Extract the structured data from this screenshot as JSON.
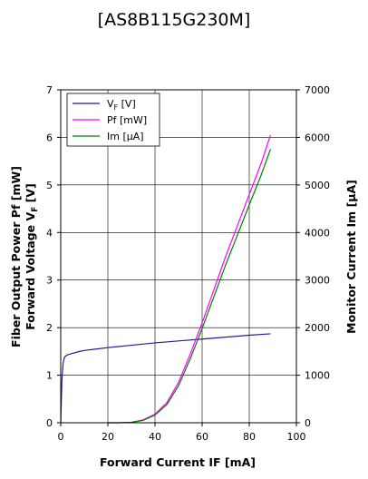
{
  "chart_data": {
    "type": "line",
    "title": "[AS8B115G230M]",
    "xlabel": "Forward Current IF [mA]",
    "ylabel_left_line1": "Fiber Output Power Pf [mW]",
    "ylabel_left_line2_main": "Forward Voltage V",
    "ylabel_left_line2_sub": "F",
    "ylabel_left_line2_unit": " [V]",
    "ylabel_right": "Monitor Current Im [µA]",
    "xlim": [
      0,
      100
    ],
    "ylim_left": [
      0,
      7
    ],
    "ylim_right": [
      0,
      7000
    ],
    "x_ticks": [
      "0",
      "20",
      "40",
      "60",
      "80",
      "100"
    ],
    "y_left_ticks": [
      "0",
      "1",
      "2",
      "3",
      "4",
      "5",
      "6",
      "7"
    ],
    "y_right_ticks": [
      "0",
      "1000",
      "2000",
      "3000",
      "4000",
      "5000",
      "6000",
      "7000"
    ],
    "grid": true,
    "legend_position": "top-left",
    "series": [
      {
        "name": "VF [V]",
        "legend_main": "V",
        "legend_sub": "F",
        "legend_unit": " [V]",
        "axis": "left",
        "color": "#1f1f8f",
        "x": [
          0,
          0.5,
          1,
          1.5,
          2,
          3,
          5,
          8,
          10,
          15,
          20,
          30,
          40,
          50,
          60,
          70,
          80,
          89
        ],
        "y": [
          0,
          0.9,
          1.25,
          1.36,
          1.4,
          1.43,
          1.46,
          1.5,
          1.52,
          1.55,
          1.58,
          1.63,
          1.68,
          1.72,
          1.76,
          1.8,
          1.84,
          1.87
        ]
      },
      {
        "name": "Pf [mW]",
        "legend_main": "Pf",
        "legend_sub": "",
        "legend_unit": " [mW]",
        "axis": "left",
        "color": "#ff00ff",
        "x": [
          20,
          25,
          30,
          35,
          40,
          45,
          50,
          55,
          60,
          65,
          70,
          75,
          80,
          85,
          89
        ],
        "y": [
          0,
          0,
          0.01,
          0.06,
          0.18,
          0.42,
          0.85,
          1.45,
          2.1,
          2.8,
          3.5,
          4.15,
          4.8,
          5.45,
          6.05
        ]
      },
      {
        "name": "Im [µA]",
        "legend_main": "Im [",
        "legend_sub": "",
        "legend_unit": "µA]",
        "axis": "right",
        "color": "#008000",
        "x": [
          20,
          25,
          30,
          35,
          40,
          45,
          50,
          55,
          60,
          65,
          70,
          75,
          80,
          85,
          89
        ],
        "y": [
          0,
          0,
          10,
          50,
          160,
          380,
          780,
          1350,
          1980,
          2650,
          3320,
          3950,
          4580,
          5200,
          5750
        ]
      }
    ]
  }
}
